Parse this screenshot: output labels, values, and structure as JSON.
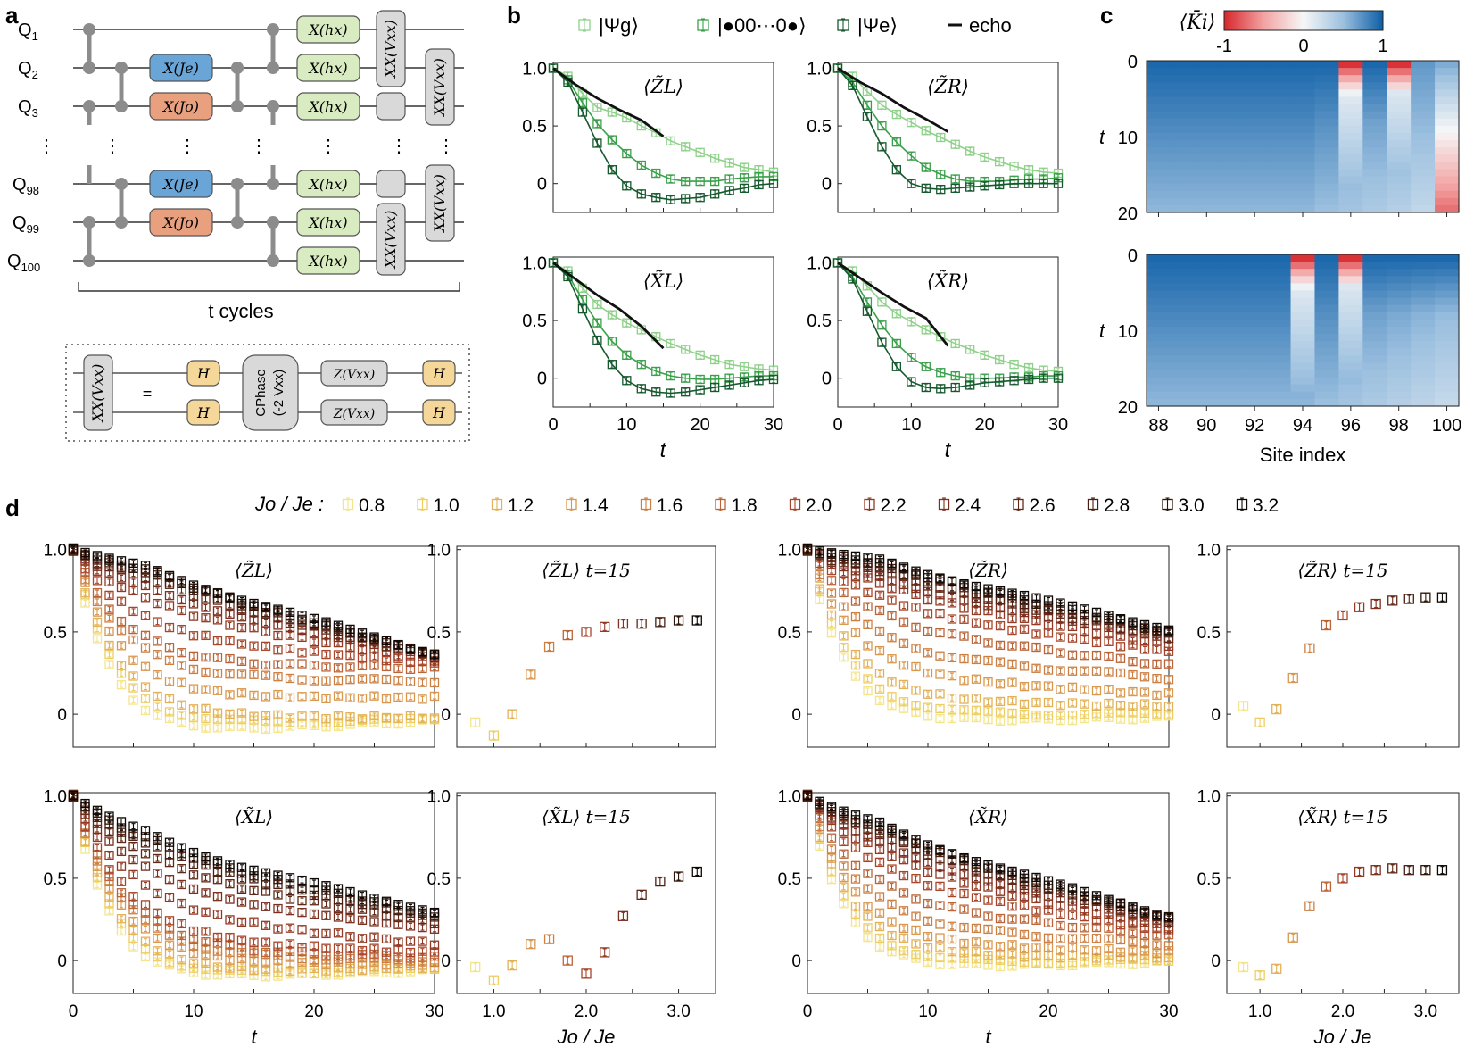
{
  "panel_labels": [
    "a",
    "b",
    "c",
    "d"
  ],
  "circuit": {
    "qubits": [
      "Q1",
      "Q2",
      "Q3",
      "⋮",
      "Q98",
      "Q99",
      "Q100"
    ],
    "gates": {
      "x_je": "X(Je)",
      "x_jo": "X(Jo)",
      "x_hx": "X(hx)",
      "xx_vxx": "XX(Vxx)"
    },
    "cycles_label": "t cycles",
    "decomposition": {
      "lhs": "XX(Vxx)",
      "eq": "=",
      "h": "H",
      "cphase_line1": "CPhase",
      "cphase_line2": "(-2 Vxx)",
      "z": "Z(Vxx)"
    }
  },
  "legend_b": [
    "|Ψg⟩",
    "|●00⋯0●⟩",
    "|Ψe⟩",
    "echo"
  ],
  "colors": {
    "psi_g": "#8fd18a",
    "dot_state": "#3aa04a",
    "psi_e": "#17592e",
    "echo": "#111111",
    "blue_gate": "#6aa5d8",
    "orange_gate": "#e8a07f",
    "green_gate": "#d9ebc0",
    "gray_gate": "#d9d9d9",
    "h_gate": "#f5d799",
    "wire": "#333333",
    "node": "#8c8c8c"
  },
  "panel_c": {
    "colorbar_label": "⟨K̄i⟩",
    "colorbar_ticks": [
      "-1",
      "0",
      "1"
    ],
    "ylabel": "t",
    "yticks": [
      "0",
      "10",
      "20"
    ],
    "xticks": [
      "88",
      "90",
      "92",
      "94",
      "96",
      "98",
      "100"
    ],
    "xlabel": "Site index"
  },
  "legend_d": {
    "title": "Jo / Je :",
    "values": [
      "0.8",
      "1.0",
      "1.2",
      "1.4",
      "1.6",
      "1.8",
      "2.0",
      "2.2",
      "2.4",
      "2.6",
      "2.8",
      "3.0",
      "3.2"
    ],
    "colors": [
      "#f4e58a",
      "#edce63",
      "#e3b157",
      "#d9984e",
      "#cc7f43",
      "#bb6437",
      "#a8452a",
      "#933a24",
      "#7c301f",
      "#602818",
      "#4a1f12",
      "#2e1509",
      "#0d0805"
    ]
  },
  "chart_data": [
    {
      "type": "line",
      "panel": "b",
      "title": "⟨Z̃L⟩",
      "xlabel": "t",
      "ylabel": "",
      "xlim": [
        0,
        30
      ],
      "ylim": [
        -0.25,
        1.05
      ],
      "xticks": [
        "0",
        "10",
        "20",
        "30"
      ],
      "yticks": [
        "0",
        "0.5",
        "1.0"
      ],
      "series": [
        {
          "name": "|Ψg⟩",
          "x": [
            0,
            2,
            4,
            6,
            8,
            10,
            12,
            14,
            16,
            18,
            20,
            22,
            24,
            26,
            28,
            30
          ],
          "y": [
            1.0,
            0.93,
            0.78,
            0.66,
            0.62,
            0.57,
            0.5,
            0.44,
            0.37,
            0.32,
            0.27,
            0.22,
            0.18,
            0.14,
            0.12,
            0.1
          ]
        },
        {
          "name": "|●00⋯0●⟩",
          "x": [
            0,
            2,
            4,
            6,
            8,
            10,
            12,
            14,
            16,
            18,
            20,
            22,
            24,
            26,
            28,
            30
          ],
          "y": [
            1.0,
            0.9,
            0.7,
            0.52,
            0.38,
            0.26,
            0.16,
            0.09,
            0.04,
            0.02,
            0.02,
            0.02,
            0.04,
            0.05,
            0.06,
            0.06
          ]
        },
        {
          "name": "|Ψe⟩",
          "x": [
            0,
            2,
            4,
            6,
            8,
            10,
            12,
            14,
            16,
            18,
            20,
            22,
            24,
            26,
            28,
            30
          ],
          "y": [
            1.0,
            0.88,
            0.62,
            0.35,
            0.12,
            -0.02,
            -0.09,
            -0.12,
            -0.14,
            -0.13,
            -0.12,
            -0.09,
            -0.06,
            -0.04,
            -0.01,
            0.0
          ]
        },
        {
          "name": "echo",
          "x": [
            0,
            3,
            6,
            9,
            12,
            15
          ],
          "y": [
            1.0,
            0.86,
            0.74,
            0.64,
            0.55,
            0.41
          ]
        }
      ]
    },
    {
      "type": "line",
      "panel": "b",
      "title": "⟨Z̃R⟩",
      "xlabel": "t",
      "ylabel": "",
      "xlim": [
        0,
        30
      ],
      "ylim": [
        -0.25,
        1.05
      ],
      "xticks": [
        "0",
        "10",
        "20",
        "30"
      ],
      "yticks": [
        "0",
        "0.5",
        "1.0"
      ],
      "series": [
        {
          "name": "|Ψg⟩",
          "x": [
            0,
            2,
            4,
            6,
            8,
            10,
            12,
            14,
            16,
            18,
            20,
            22,
            24,
            26,
            28,
            30
          ],
          "y": [
            1.0,
            0.93,
            0.8,
            0.68,
            0.6,
            0.53,
            0.46,
            0.4,
            0.34,
            0.28,
            0.23,
            0.19,
            0.15,
            0.12,
            0.1,
            0.09
          ]
        },
        {
          "name": "|●00⋯0●⟩",
          "x": [
            0,
            2,
            4,
            6,
            8,
            10,
            12,
            14,
            16,
            18,
            20,
            22,
            24,
            26,
            28,
            30
          ],
          "y": [
            1.0,
            0.88,
            0.68,
            0.5,
            0.36,
            0.24,
            0.14,
            0.08,
            0.04,
            0.02,
            0.02,
            0.02,
            0.03,
            0.04,
            0.04,
            0.05
          ]
        },
        {
          "name": "|Ψe⟩",
          "x": [
            0,
            2,
            4,
            6,
            8,
            10,
            12,
            14,
            16,
            18,
            20,
            22,
            24,
            26,
            28,
            30
          ],
          "y": [
            1.0,
            0.85,
            0.58,
            0.32,
            0.12,
            0.0,
            -0.04,
            -0.05,
            -0.04,
            -0.03,
            -0.02,
            -0.01,
            0.0,
            0.0,
            0.0,
            0.0
          ]
        },
        {
          "name": "echo",
          "x": [
            0,
            3,
            6,
            9,
            12,
            15
          ],
          "y": [
            1.0,
            0.88,
            0.78,
            0.66,
            0.56,
            0.45
          ]
        }
      ]
    },
    {
      "type": "line",
      "panel": "b",
      "title": "⟨X̃L⟩",
      "xlabel": "t",
      "ylabel": "",
      "xlim": [
        0,
        30
      ],
      "ylim": [
        -0.25,
        1.05
      ],
      "xticks": [
        "0",
        "10",
        "20",
        "30"
      ],
      "yticks": [
        "0",
        "0.5",
        "1.0"
      ],
      "series": [
        {
          "name": "|Ψg⟩",
          "x": [
            0,
            2,
            4,
            6,
            8,
            10,
            12,
            14,
            16,
            18,
            20,
            22,
            24,
            26,
            28,
            30
          ],
          "y": [
            1.0,
            0.93,
            0.78,
            0.64,
            0.55,
            0.48,
            0.42,
            0.36,
            0.3,
            0.25,
            0.2,
            0.16,
            0.12,
            0.1,
            0.08,
            0.07
          ]
        },
        {
          "name": "|●00⋯0●⟩",
          "x": [
            0,
            2,
            4,
            6,
            8,
            10,
            12,
            14,
            16,
            18,
            20,
            22,
            24,
            26,
            28,
            30
          ],
          "y": [
            1.0,
            0.9,
            0.68,
            0.48,
            0.32,
            0.2,
            0.12,
            0.06,
            0.02,
            0.0,
            -0.01,
            -0.01,
            0.0,
            0.01,
            0.02,
            0.02
          ]
        },
        {
          "name": "|Ψe⟩",
          "x": [
            0,
            2,
            4,
            6,
            8,
            10,
            12,
            14,
            16,
            18,
            20,
            22,
            24,
            26,
            28,
            30
          ],
          "y": [
            1.0,
            0.88,
            0.6,
            0.33,
            0.12,
            -0.02,
            -0.09,
            -0.12,
            -0.13,
            -0.12,
            -0.1,
            -0.08,
            -0.06,
            -0.04,
            -0.02,
            -0.01
          ]
        },
        {
          "name": "echo",
          "x": [
            0,
            3,
            6,
            9,
            12,
            15
          ],
          "y": [
            1.0,
            0.86,
            0.72,
            0.6,
            0.45,
            0.26
          ]
        }
      ]
    },
    {
      "type": "line",
      "panel": "b",
      "title": "⟨X̃R⟩",
      "xlabel": "t",
      "ylabel": "",
      "xlim": [
        0,
        30
      ],
      "ylim": [
        -0.25,
        1.05
      ],
      "xticks": [
        "0",
        "10",
        "20",
        "30"
      ],
      "yticks": [
        "0",
        "0.5",
        "1.0"
      ],
      "series": [
        {
          "name": "|Ψg⟩",
          "x": [
            0,
            2,
            4,
            6,
            8,
            10,
            12,
            14,
            16,
            18,
            20,
            22,
            24,
            26,
            28,
            30
          ],
          "y": [
            1.0,
            0.93,
            0.8,
            0.66,
            0.56,
            0.49,
            0.42,
            0.36,
            0.3,
            0.25,
            0.2,
            0.16,
            0.12,
            0.09,
            0.07,
            0.06
          ]
        },
        {
          "name": "|●00⋯0●⟩",
          "x": [
            0,
            2,
            4,
            6,
            8,
            10,
            12,
            14,
            16,
            18,
            20,
            22,
            24,
            26,
            28,
            30
          ],
          "y": [
            1.0,
            0.88,
            0.66,
            0.46,
            0.3,
            0.18,
            0.1,
            0.05,
            0.02,
            0.0,
            0.0,
            0.0,
            0.01,
            0.01,
            0.02,
            0.02
          ]
        },
        {
          "name": "|Ψe⟩",
          "x": [
            0,
            2,
            4,
            6,
            8,
            10,
            12,
            14,
            16,
            18,
            20,
            22,
            24,
            26,
            28,
            30
          ],
          "y": [
            1.0,
            0.86,
            0.58,
            0.31,
            0.1,
            -0.03,
            -0.08,
            -0.09,
            -0.08,
            -0.06,
            -0.04,
            -0.03,
            -0.02,
            -0.01,
            0.0,
            0.0
          ]
        },
        {
          "name": "echo",
          "x": [
            0,
            3,
            6,
            9,
            12,
            15
          ],
          "y": [
            1.0,
            0.87,
            0.74,
            0.62,
            0.52,
            0.28
          ]
        }
      ]
    },
    {
      "type": "heatmap",
      "panel": "c-top",
      "xlabel": "",
      "ylabel": "t",
      "x_range": [
        88,
        100
      ],
      "t_range": [
        0,
        20
      ],
      "hot_sites": [
        {
          "site": 96,
          "depth": 5
        },
        {
          "site": 98,
          "depth": 4
        }
      ],
      "edge_fade_site": 100
    },
    {
      "type": "heatmap",
      "panel": "c-bottom",
      "xlabel": "Site index",
      "ylabel": "t",
      "x_range": [
        88,
        100
      ],
      "t_range": [
        0,
        20
      ],
      "hot_sites": [
        {
          "site": 94,
          "depth": 5
        },
        {
          "site": 96,
          "depth": 4
        }
      ],
      "edge_fade_site": 100
    },
    {
      "type": "scatter",
      "panel": "d",
      "title": "⟨Z̃L⟩",
      "xlabel": "",
      "xlim": [
        0,
        30
      ],
      "ylim": [
        -0.2,
        1.02
      ],
      "yticks": [
        "0",
        "0.5",
        "1.0"
      ],
      "xticks": [],
      "plateau_by_ratio": [
        -0.12,
        -0.07,
        -0.02,
        0.1,
        0.22,
        0.3,
        0.45,
        0.6,
        0.7,
        0.76,
        0.8,
        0.82,
        0.84
      ],
      "final_by_ratio": [
        -0.04,
        -0.03,
        -0.02,
        0.1,
        0.2,
        0.28,
        0.31,
        0.33,
        0.34,
        0.35,
        0.36,
        0.36,
        0.37
      ]
    },
    {
      "type": "scatter",
      "panel": "d",
      "title": "⟨Z̃L⟩ t=15",
      "xlabel": "",
      "xlim": [
        0.6,
        3.4
      ],
      "ylim": [
        -0.2,
        1.02
      ],
      "yticks": [
        "0",
        "0.5",
        "1.0"
      ],
      "xticks": [],
      "x": [
        0.8,
        1.0,
        1.2,
        1.4,
        1.6,
        1.8,
        2.0,
        2.2,
        2.4,
        2.6,
        2.8,
        3.0,
        3.2
      ],
      "y": [
        -0.05,
        -0.13,
        0.0,
        0.24,
        0.41,
        0.48,
        0.5,
        0.53,
        0.55,
        0.55,
        0.56,
        0.57,
        0.57
      ]
    },
    {
      "type": "scatter",
      "panel": "d",
      "title": "⟨Z̃R⟩",
      "xlabel": "",
      "xlim": [
        0,
        30
      ],
      "ylim": [
        -0.2,
        1.02
      ],
      "yticks": [
        "0",
        "0.5",
        "1.0"
      ],
      "xticks": [],
      "plateau_by_ratio": [
        -0.05,
        0.0,
        0.08,
        0.22,
        0.35,
        0.5,
        0.62,
        0.72,
        0.78,
        0.82,
        0.85,
        0.88,
        0.9
      ],
      "final_by_ratio": [
        -0.02,
        0.0,
        0.05,
        0.12,
        0.22,
        0.3,
        0.38,
        0.42,
        0.45,
        0.47,
        0.49,
        0.5,
        0.52
      ]
    },
    {
      "type": "scatter",
      "panel": "d",
      "title": "⟨Z̃R⟩ t=15",
      "xlabel": "",
      "xlim": [
        0.6,
        3.4
      ],
      "ylim": [
        -0.2,
        1.02
      ],
      "yticks": [
        "0",
        "0.5",
        "1.0"
      ],
      "xticks": [],
      "x": [
        0.8,
        1.0,
        1.2,
        1.4,
        1.6,
        1.8,
        2.0,
        2.2,
        2.4,
        2.6,
        2.8,
        3.0,
        3.2
      ],
      "y": [
        0.05,
        -0.05,
        0.03,
        0.22,
        0.4,
        0.54,
        0.6,
        0.65,
        0.67,
        0.69,
        0.7,
        0.71,
        0.71
      ]
    },
    {
      "type": "scatter",
      "panel": "d",
      "title": "⟨X̃L⟩",
      "xlabel": "t",
      "xlim": [
        0,
        30
      ],
      "ylim": [
        -0.2,
        1.02
      ],
      "yticks": [
        "0",
        "0.5",
        "1.0"
      ],
      "xticks": [
        "0",
        "10",
        "20",
        "30"
      ],
      "plateau_by_ratio": [
        -0.12,
        -0.1,
        -0.08,
        -0.02,
        0.02,
        0.05,
        0.1,
        0.25,
        0.4,
        0.5,
        0.58,
        0.62,
        0.66
      ],
      "final_by_ratio": [
        -0.06,
        -0.05,
        -0.04,
        -0.02,
        0.0,
        0.02,
        0.05,
        0.1,
        0.18,
        0.23,
        0.26,
        0.28,
        0.3
      ]
    },
    {
      "type": "scatter",
      "panel": "d",
      "title": "⟨X̃L⟩ t=15",
      "xlabel": "Jo / Je",
      "xlim": [
        0.6,
        3.4
      ],
      "ylim": [
        -0.2,
        1.02
      ],
      "yticks": [
        "0",
        "0.5",
        "1.0"
      ],
      "xticks": [
        "1.0",
        "2.0",
        "3.0"
      ],
      "x": [
        0.8,
        1.0,
        1.2,
        1.4,
        1.6,
        1.8,
        2.0,
        2.2,
        2.4,
        2.6,
        2.8,
        3.0,
        3.2
      ],
      "y": [
        -0.04,
        -0.12,
        -0.03,
        0.1,
        0.13,
        0.0,
        -0.08,
        0.05,
        0.27,
        0.4,
        0.48,
        0.51,
        0.54
      ]
    },
    {
      "type": "scatter",
      "panel": "d",
      "title": "⟨X̃R⟩",
      "xlabel": "t",
      "xlim": [
        0,
        30
      ],
      "ylim": [
        -0.2,
        1.02
      ],
      "yticks": [
        "0",
        "0.5",
        "1.0"
      ],
      "xticks": [
        "0",
        "10",
        "20",
        "30"
      ],
      "plateau_by_ratio": [
        -0.05,
        -0.02,
        0.03,
        0.1,
        0.2,
        0.32,
        0.45,
        0.55,
        0.62,
        0.67,
        0.7,
        0.72,
        0.74
      ],
      "final_by_ratio": [
        -0.01,
        0.0,
        0.02,
        0.05,
        0.1,
        0.15,
        0.18,
        0.2,
        0.22,
        0.24,
        0.25,
        0.26,
        0.27
      ]
    },
    {
      "type": "scatter",
      "panel": "d",
      "title": "⟨X̃R⟩ t=15",
      "xlabel": "Jo / Je",
      "xlim": [
        0.6,
        3.4
      ],
      "ylim": [
        -0.2,
        1.02
      ],
      "yticks": [
        "0",
        "0.5",
        "1.0"
      ],
      "xticks": [
        "1.0",
        "2.0",
        "3.0"
      ],
      "x": [
        0.8,
        1.0,
        1.2,
        1.4,
        1.6,
        1.8,
        2.0,
        2.2,
        2.4,
        2.6,
        2.8,
        3.0,
        3.2
      ],
      "y": [
        -0.04,
        -0.09,
        -0.05,
        0.14,
        0.33,
        0.45,
        0.5,
        0.54,
        0.55,
        0.56,
        0.55,
        0.55,
        0.55
      ]
    }
  ]
}
